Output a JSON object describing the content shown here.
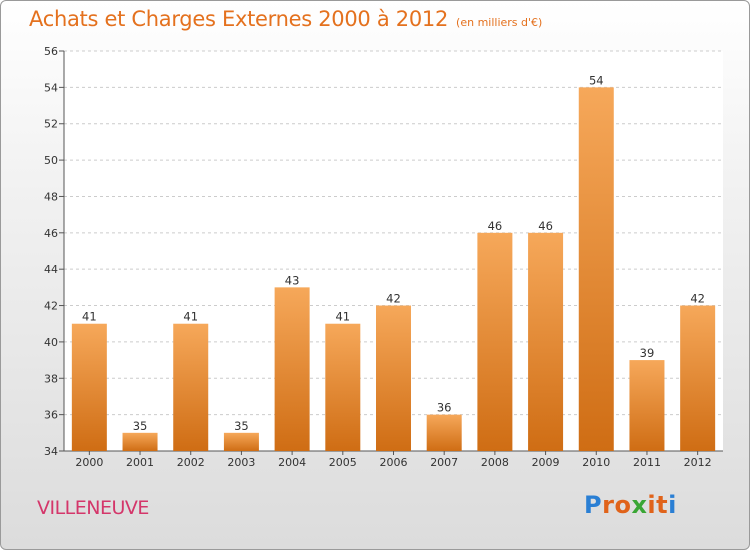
{
  "title": {
    "main": "Achats et Charges Externes 2000 à 2012",
    "unit": "(en milliers d'€)"
  },
  "commune": "VILLENEUVE",
  "logo": {
    "letters": [
      "P",
      "r",
      "o",
      "x",
      "i",
      "t",
      "i"
    ],
    "colors": [
      "#2a7fd4",
      "#e0631a",
      "#e0631a",
      "#3aa635",
      "#e0631a",
      "#e0631a",
      "#2a7fd4"
    ]
  },
  "colors": {
    "bar_top": "#f6a85a",
    "bar_bottom": "#cf6d14",
    "title": "#e4711e",
    "commune": "#d4366a",
    "grid": "#cccccc"
  },
  "chart_data": {
    "type": "bar",
    "title": "Achats et Charges Externes 2000 à 2012",
    "subtitle": "(en milliers d'€)",
    "xlabel": "",
    "ylabel": "",
    "categories": [
      "2000",
      "2001",
      "2002",
      "2003",
      "2004",
      "2005",
      "2006",
      "2007",
      "2008",
      "2009",
      "2010",
      "2011",
      "2012"
    ],
    "values": [
      41,
      35,
      41,
      35,
      43,
      41,
      42,
      36,
      46,
      46,
      54,
      39,
      42
    ],
    "ylim": [
      34,
      56
    ],
    "yticks": [
      34,
      36,
      38,
      40,
      42,
      44,
      46,
      48,
      50,
      52,
      54,
      56
    ],
    "grid": true,
    "legend": "none"
  }
}
